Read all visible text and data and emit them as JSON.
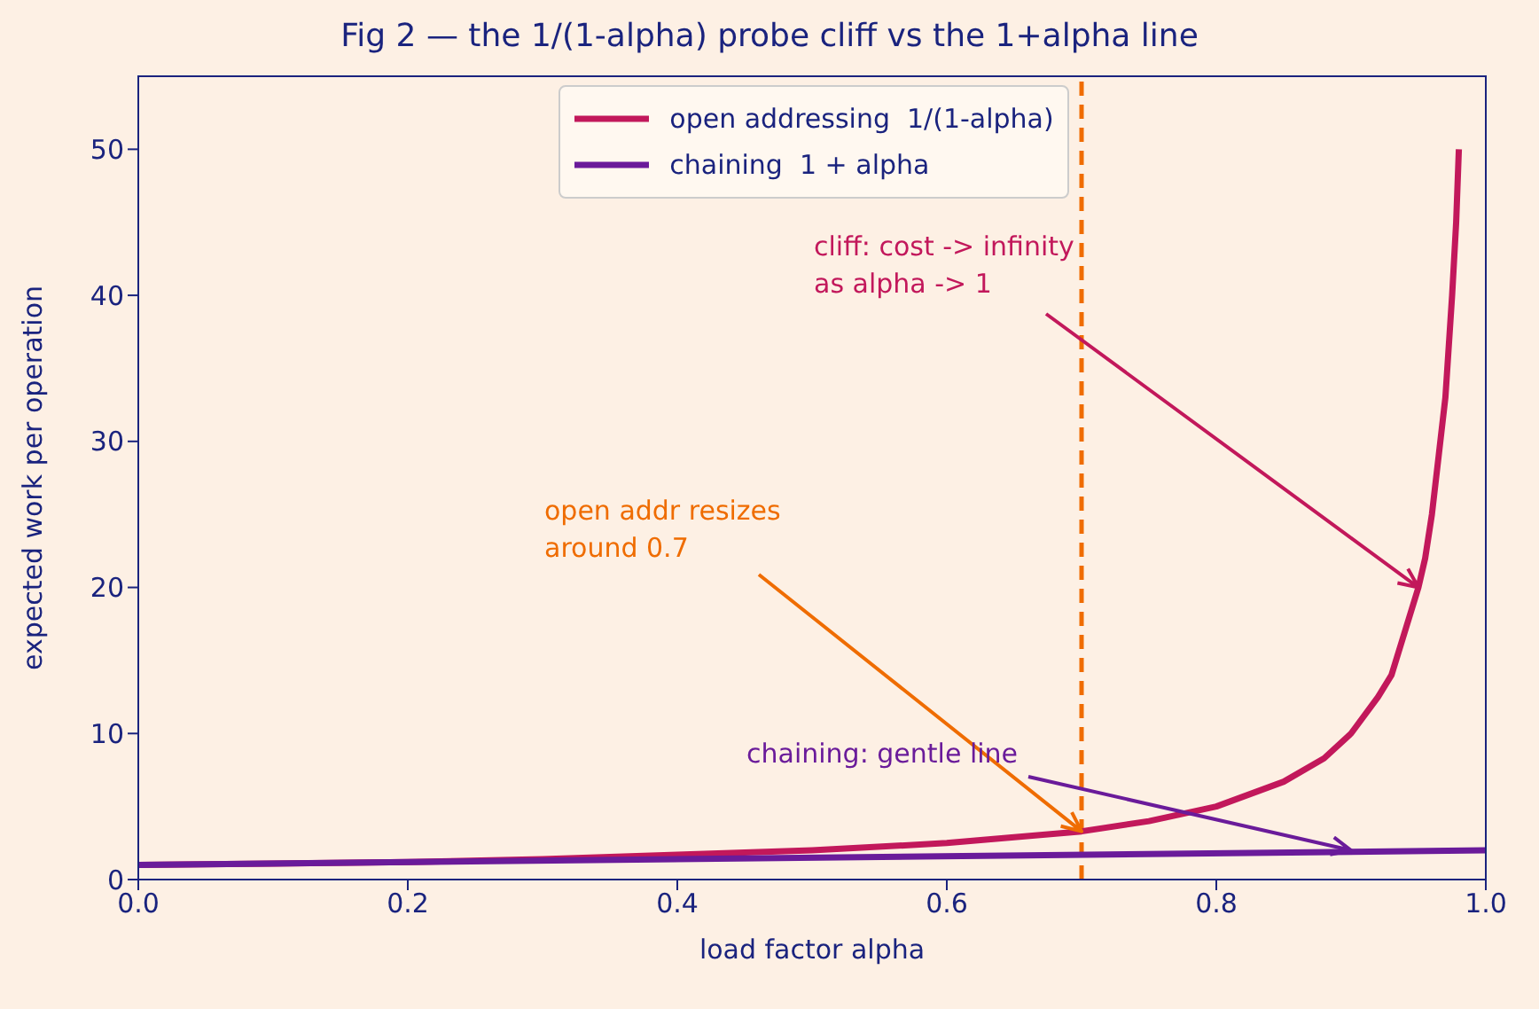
{
  "chart_data": {
    "type": "line",
    "title": "Fig 2 — the 1/(1-alpha) probe cliff vs the 1+alpha line",
    "xlabel": "load factor  alpha",
    "ylabel": "expected work per operation",
    "series": [
      {
        "name": "open addressing  1/(1-alpha)",
        "color": "#c2185b",
        "x": [
          0,
          0.1,
          0.2,
          0.3,
          0.4,
          0.5,
          0.6,
          0.7,
          0.75,
          0.8,
          0.85,
          0.88,
          0.9,
          0.92,
          0.93,
          0.94,
          0.95,
          0.955,
          0.96,
          0.965,
          0.97,
          0.975,
          0.978,
          0.98
        ],
        "values": [
          1,
          1.1,
          1.2,
          1.4,
          1.7,
          2,
          2.5,
          3.3,
          4,
          5,
          6.7,
          8.3,
          10,
          12.5,
          14,
          17,
          20,
          22,
          25,
          29,
          33,
          40,
          45,
          50
        ]
      },
      {
        "name": "chaining  1 + alpha",
        "color": "#6a1b9a",
        "x": [
          0,
          1
        ],
        "values": [
          1,
          2
        ]
      }
    ],
    "xlim": [
      0,
      1
    ],
    "xticks": [
      {
        "value": 0,
        "label": "0.0"
      },
      {
        "value": 0.2,
        "label": "0.2"
      },
      {
        "value": 0.4,
        "label": "0.4"
      },
      {
        "value": 0.6,
        "label": "0.6"
      },
      {
        "value": 0.8,
        "label": "0.8"
      },
      {
        "value": 1,
        "label": "1.0"
      }
    ],
    "ylim": [
      0,
      55
    ],
    "yticks": [
      0,
      10,
      20,
      30,
      40,
      50
    ],
    "ref_lines": [
      {
        "axis": "x",
        "value": 0.7,
        "color": "#ef6c00",
        "line_style": "dashed"
      }
    ],
    "annotations": [
      {
        "text": "cliff: cost -> infinity\nas alpha -> 1",
        "x": 0.95,
        "y": 20
      },
      {
        "text": "open addr resizes\naround 0.7",
        "x": 0.7,
        "y": 3.3
      },
      {
        "text": "chaining: gentle line",
        "x": 0.9,
        "y": 2
      }
    ],
    "legend": "top",
    "grid": false,
    "line_style": "solid",
    "marker": "none"
  }
}
